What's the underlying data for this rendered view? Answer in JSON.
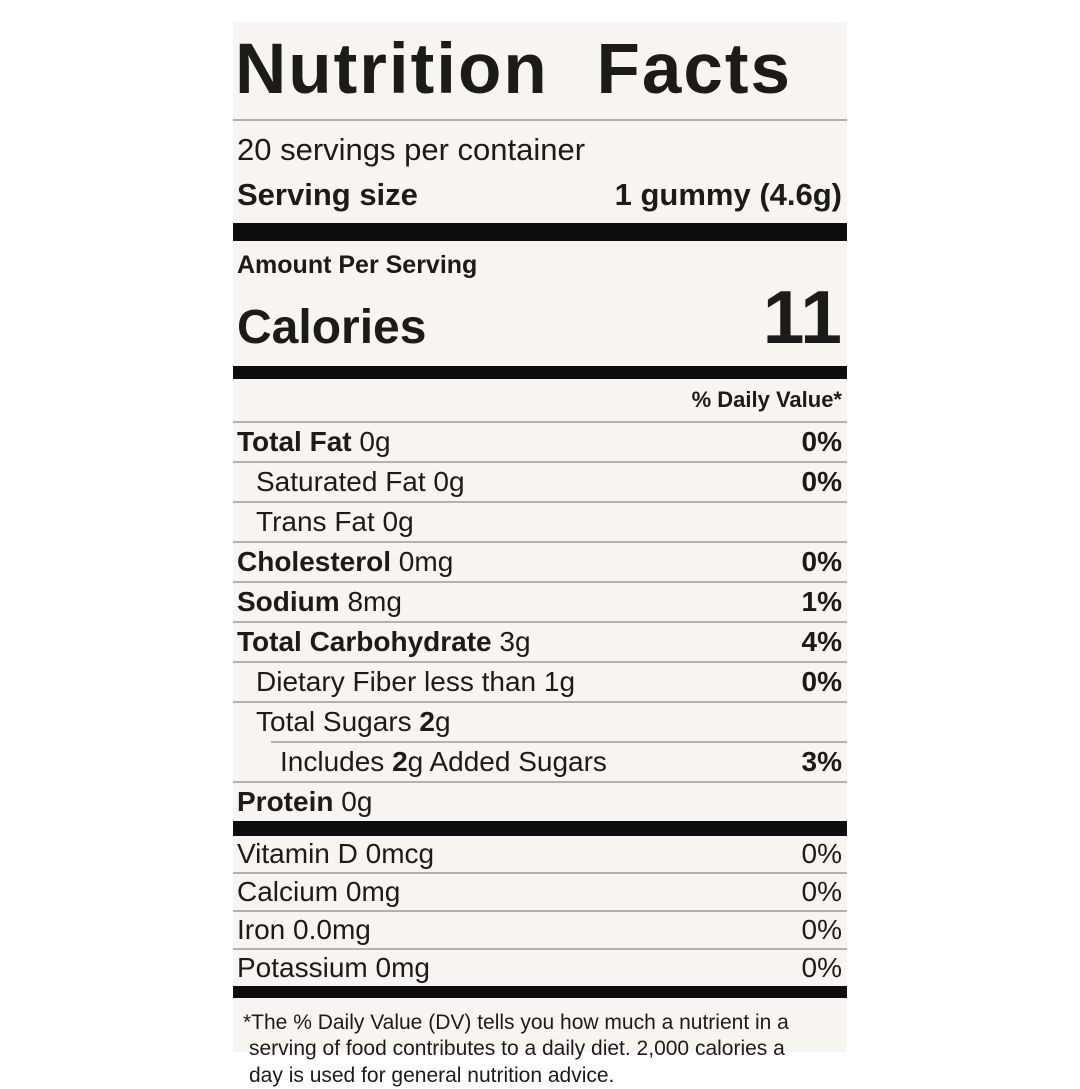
{
  "label": {
    "title": "Nutrition Facts",
    "servings_per_container": "20 servings per container",
    "serving_size_label": "Serving size",
    "serving_size_value": "1 gummy (4.6g)",
    "amount_per_serving": "Amount Per Serving",
    "calories_label": "Calories",
    "calories_value": "11",
    "daily_value_header": "% Daily Value*",
    "colors": {
      "page_bg": "#ffffff",
      "label_bg": "#f6f5f1",
      "text": "#1b1b1a",
      "bar": "#0d0d0d",
      "hairline": "#b3b1ac"
    },
    "nutrients": [
      {
        "indent": 0,
        "parts": [
          {
            "text": "Total Fat",
            "bold": true
          },
          {
            "text": " 0g",
            "bold": false
          }
        ],
        "dv": "0%",
        "dv_bold": true
      },
      {
        "indent": 1,
        "parts": [
          {
            "text": "Saturated Fat 0g",
            "bold": false
          }
        ],
        "dv": "0%",
        "dv_bold": true
      },
      {
        "indent": 1,
        "parts": [
          {
            "text": "Trans Fat 0g",
            "bold": false
          }
        ],
        "dv": "",
        "dv_bold": false
      },
      {
        "indent": 0,
        "parts": [
          {
            "text": "Cholesterol",
            "bold": true
          },
          {
            "text": " 0mg",
            "bold": false
          }
        ],
        "dv": "0%",
        "dv_bold": true
      },
      {
        "indent": 0,
        "parts": [
          {
            "text": "Sodium",
            "bold": true
          },
          {
            "text": " 8mg",
            "bold": false
          }
        ],
        "dv": "1%",
        "dv_bold": true
      },
      {
        "indent": 0,
        "parts": [
          {
            "text": "Total Carbohydrate",
            "bold": true
          },
          {
            "text": " 3g",
            "bold": false
          }
        ],
        "dv": "4%",
        "dv_bold": true
      },
      {
        "indent": 1,
        "parts": [
          {
            "text": "Dietary Fiber less than 1g",
            "bold": false
          }
        ],
        "dv": "0%",
        "dv_bold": true
      },
      {
        "indent": 1,
        "parts": [
          {
            "text": "Total Sugars ",
            "bold": false
          },
          {
            "text": "2",
            "bold": true
          },
          {
            "text": "g",
            "bold": false
          }
        ],
        "dv": "",
        "dv_bold": false
      },
      {
        "indent": 2,
        "partial_rule": true,
        "parts": [
          {
            "text": "Includes ",
            "bold": false
          },
          {
            "text": "2",
            "bold": true
          },
          {
            "text": "g Added Sugars",
            "bold": false
          }
        ],
        "dv": "3%",
        "dv_bold": true
      },
      {
        "indent": 0,
        "parts": [
          {
            "text": "Protein",
            "bold": true
          },
          {
            "text": " 0g",
            "bold": false
          }
        ],
        "dv": "",
        "dv_bold": false
      }
    ],
    "micronutrients": [
      {
        "text": "Vitamin D 0mcg",
        "dv": "0%"
      },
      {
        "text": "Calcium 0mg",
        "dv": "0%"
      },
      {
        "text": "Iron 0.0mg",
        "dv": "0%"
      },
      {
        "text": "Potassium 0mg",
        "dv": "0%"
      }
    ],
    "footnote_lines": [
      "*The % Daily Value (DV) tells you how much a nutrient in a",
      "serving of food contributes to a daily diet. 2,000 calories a",
      "day is used for general nutrition advice."
    ]
  }
}
